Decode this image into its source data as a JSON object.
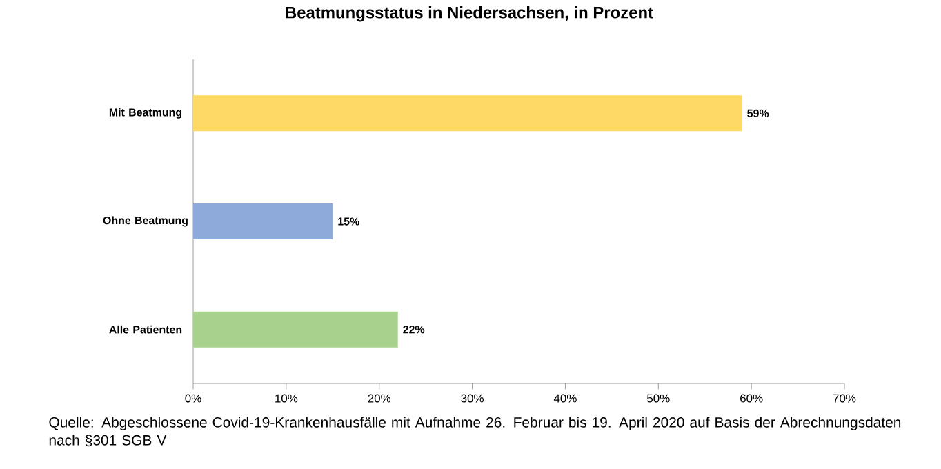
{
  "chart_data": {
    "type": "bar",
    "orientation": "horizontal",
    "title": "Beatmungsstatus in Niedersachsen, in Prozent",
    "categories": [
      "Mit Beatmung",
      "Ohne Beatmung",
      "Alle Patienten"
    ],
    "values": [
      59,
      15,
      22
    ],
    "colors": [
      "#ffd966",
      "#8eaadb",
      "#a9d18e"
    ],
    "value_labels": [
      "59%",
      "15%",
      "22%"
    ],
    "xlim": [
      0,
      70
    ],
    "xticks": [
      {
        "value": 0,
        "label": "0%"
      },
      {
        "value": 10,
        "label": "10%"
      },
      {
        "value": 20,
        "label": "20%"
      },
      {
        "value": 30,
        "label": "30%"
      },
      {
        "value": 40,
        "label": "40%"
      },
      {
        "value": 50,
        "label": "50%"
      },
      {
        "value": 60,
        "label": "60%"
      },
      {
        "value": 70,
        "label": "70%"
      }
    ],
    "grid": false,
    "annotations": [
      "Quelle: Abgeschlossene Covid-19-Krankenhausfälle mit Aufnahme 26. Februar bis 19. April 2020 auf Basis der Abrechnungsdaten nach §301 SGB V"
    ]
  }
}
